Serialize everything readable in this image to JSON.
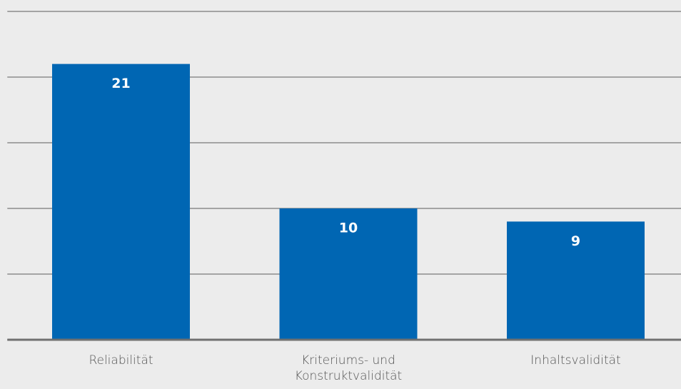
{
  "chart_data": {
    "type": "bar",
    "categories": [
      "Reliabilität",
      "Kriteriums- und Konstruktvalidität",
      "Inhaltsvalidität"
    ],
    "values": [
      21,
      10,
      9
    ],
    "color": "#0066b3",
    "ylim": [
      0,
      25
    ],
    "yticks": [
      0,
      5,
      10,
      15,
      20,
      25
    ],
    "grid": true
  }
}
